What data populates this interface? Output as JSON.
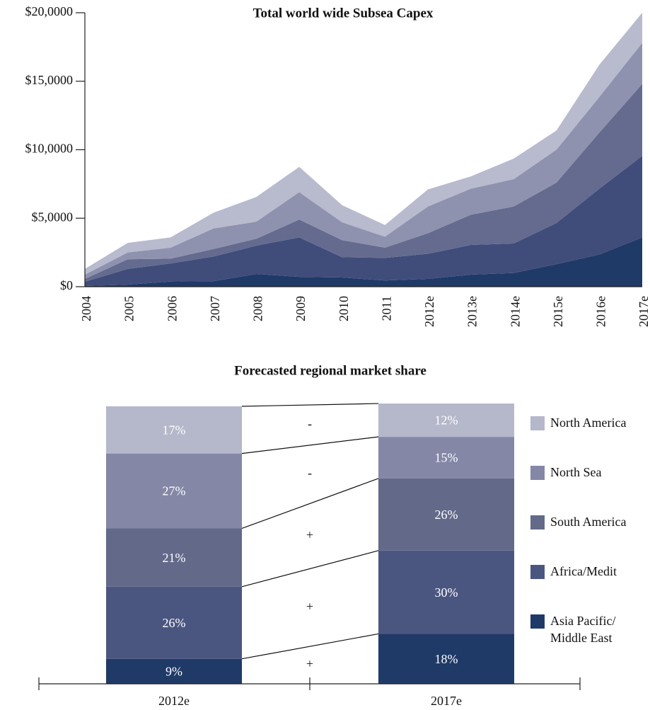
{
  "chart_data": [
    {
      "type": "stacked_area",
      "title": "Total world wide Subsea Capex",
      "categories": [
        "2004",
        "2005",
        "2006",
        "2007",
        "2008",
        "2009",
        "2010",
        "2011",
        "2012e",
        "2013e",
        "2014e",
        "2015e",
        "2016e",
        "2017e"
      ],
      "series": [
        {
          "color": "#1f3a66",
          "values": [
            50,
            150,
            380,
            400,
            930,
            720,
            670,
            450,
            570,
            880,
            1000,
            1650,
            2350,
            3600
          ]
        },
        {
          "color": "#404d7a",
          "values": [
            310,
            1150,
            1320,
            1800,
            2070,
            2880,
            1480,
            1650,
            1830,
            2170,
            2150,
            3000,
            4800,
            5950
          ]
        },
        {
          "color": "#646b8f",
          "values": [
            210,
            700,
            350,
            550,
            500,
            1300,
            1250,
            750,
            1500,
            2200,
            2700,
            2950,
            4100,
            5250
          ]
        },
        {
          "color": "#8e92ae",
          "values": [
            310,
            500,
            800,
            1500,
            1250,
            2000,
            1300,
            800,
            1950,
            1900,
            2000,
            2400,
            2600,
            3000
          ]
        },
        {
          "color": "#b8bacd",
          "values": [
            420,
            700,
            750,
            1150,
            1800,
            1850,
            1250,
            850,
            1250,
            900,
            1500,
            1400,
            2350,
            2200
          ]
        }
      ],
      "ylim": [
        0,
        20000
      ],
      "yticks": [
        {
          "value": 0,
          "label": "$0"
        },
        {
          "value": 5000,
          "label": "$5,0000"
        },
        {
          "value": 10000,
          "label": "$10,0000"
        },
        {
          "value": 15000,
          "label": "$15,0000"
        },
        {
          "value": 20000,
          "label": "$20,0000"
        }
      ]
    },
    {
      "type": "stacked_bar",
      "title": "Forecasted regional market share",
      "categories": [
        "2012e",
        "2017e"
      ],
      "series": [
        {
          "name": "Asia Pacific/ Middle East",
          "color": "#1f3a66",
          "values": [
            9,
            18
          ],
          "value_labels": [
            "9%",
            "18%"
          ],
          "change": "+"
        },
        {
          "name": "Africa/Medit",
          "color": "#4b5680",
          "values": [
            26,
            30
          ],
          "value_labels": [
            "26%",
            "30%"
          ],
          "change": "+"
        },
        {
          "name": "South America",
          "color": "#626989",
          "values": [
            21,
            26
          ],
          "value_labels": [
            "21%",
            "26%"
          ],
          "change": "+"
        },
        {
          "name": "North Sea",
          "color": "#8487a6",
          "values": [
            27,
            15
          ],
          "value_labels": [
            "27%",
            "15%"
          ],
          "change": "-"
        },
        {
          "name": "North America",
          "color": "#b5b7ca",
          "values": [
            17,
            12
          ],
          "value_labels": [
            "17%",
            "12%"
          ],
          "change": "-"
        }
      ],
      "ylim": [
        0,
        100
      ]
    }
  ]
}
